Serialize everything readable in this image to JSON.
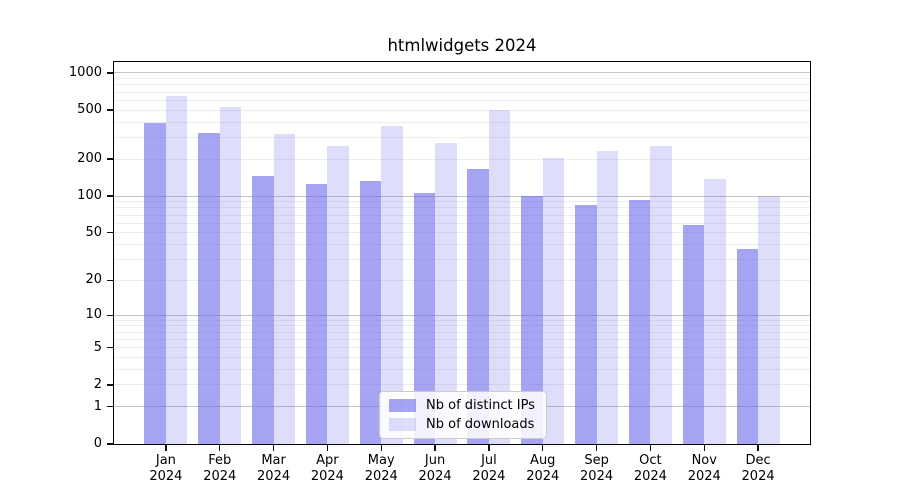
{
  "title": "htmlwidgets 2024",
  "chart_data": {
    "type": "bar",
    "title": "htmlwidgets 2024",
    "months": [
      "Jan",
      "Feb",
      "Mar",
      "Apr",
      "May",
      "Jun",
      "Jul",
      "Aug",
      "Sep",
      "Oct",
      "Nov",
      "Dec"
    ],
    "year": "2024",
    "series": [
      {
        "name": "Nb of distinct IPs",
        "color": "rgba(100,100,235,0.58)",
        "values": [
          390,
          325,
          145,
          125,
          132,
          106,
          165,
          101,
          84,
          93,
          58,
          37
        ]
      },
      {
        "name": "Nb of downloads",
        "color": "rgba(100,100,235,0.21)",
        "values": [
          655,
          530,
          320,
          255,
          370,
          268,
          500,
          205,
          235,
          258,
          138,
          101
        ]
      }
    ],
    "yscale": "log1p",
    "ylim": [
      0,
      1225
    ],
    "y_ticks": [
      1000,
      500,
      200,
      100,
      50,
      20,
      10,
      5,
      2,
      1,
      0
    ],
    "grid_major": [
      1,
      10,
      100,
      1000
    ],
    "grid_minor": [
      2,
      3,
      4,
      5,
      6,
      7,
      8,
      9,
      20,
      30,
      40,
      50,
      60,
      70,
      80,
      90,
      200,
      300,
      400,
      500,
      600,
      700,
      800,
      900
    ],
    "legend_position": "inside-bottom-center",
    "grid": "on"
  },
  "colors": {
    "grid_minor": "#ededed",
    "grid_major": "#c4c4c4",
    "axis_frame": "#000000",
    "tick": "#111111",
    "text": "#000000",
    "legend_border": "#cccccc",
    "legend_bg": "rgba(255,255,255,0.85)"
  }
}
